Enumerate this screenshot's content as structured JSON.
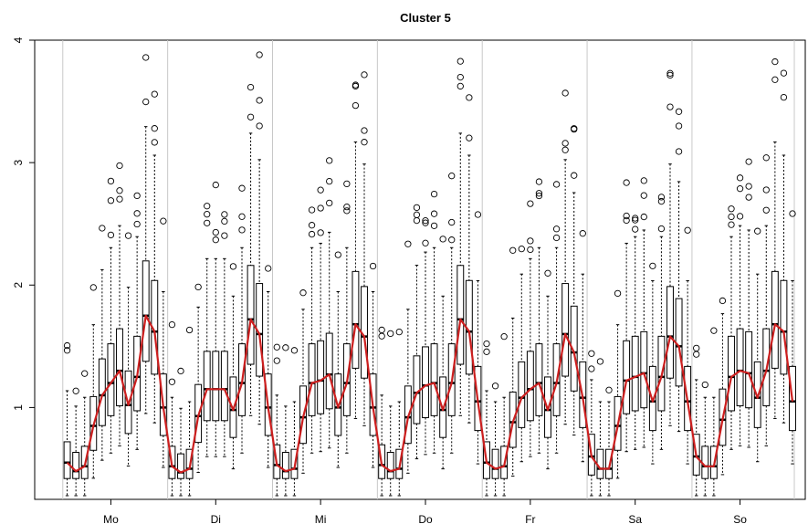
{
  "chart_data": {
    "type": "boxplot",
    "title": "Cluster 5",
    "xlabel": "",
    "ylabel": "",
    "categories": [
      "Mo",
      "Di",
      "Mi",
      "Do",
      "Fr",
      "Sa",
      "So"
    ],
    "boxes_per_category": 12,
    "ylim": [
      0.25,
      4.0
    ],
    "yticks": [
      1,
      2,
      3,
      4
    ],
    "grid": "vertical separators between days",
    "median_line_color": "#cc1f1f",
    "day_profiles": [
      [
        0.55,
        0.48,
        0.52,
        0.85,
        1.1,
        1.2,
        1.3,
        1.02,
        1.25,
        1.75,
        1.62,
        1.0
      ],
      [
        0.52,
        0.47,
        0.5,
        0.93,
        1.15,
        1.15,
        1.15,
        0.98,
        1.2,
        1.72,
        1.6,
        1.0
      ],
      [
        0.53,
        0.48,
        0.5,
        0.92,
        1.2,
        1.22,
        1.27,
        1.0,
        1.2,
        1.68,
        1.58,
        1.0
      ],
      [
        0.53,
        0.48,
        0.5,
        0.92,
        1.12,
        1.18,
        1.2,
        0.98,
        1.2,
        1.72,
        1.62,
        1.05
      ],
      [
        0.55,
        0.5,
        0.52,
        0.88,
        1.08,
        1.15,
        1.2,
        0.98,
        1.2,
        1.6,
        1.45,
        1.08
      ],
      [
        0.6,
        0.5,
        0.5,
        0.85,
        1.22,
        1.25,
        1.28,
        1.05,
        1.25,
        1.58,
        1.5,
        1.05
      ],
      [
        0.6,
        0.52,
        0.52,
        0.9,
        1.25,
        1.3,
        1.28,
        1.08,
        1.3,
        1.68,
        1.62,
        1.05
      ]
    ]
  }
}
